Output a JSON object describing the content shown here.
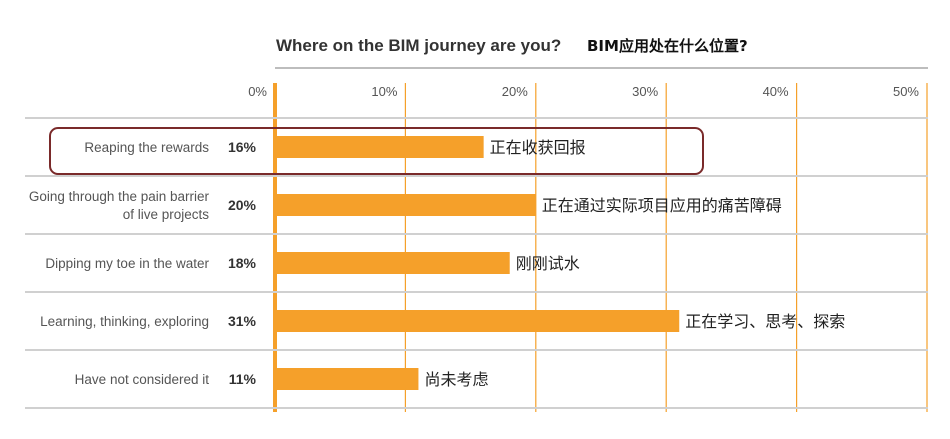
{
  "chart_data": {
    "type": "bar",
    "orientation": "horizontal",
    "title": "Where on the BIM journey are you?",
    "title_cn": "BIM应用处在什么位置?",
    "categories": [
      "Reaping the rewards",
      "Going through the pain barrier of live projects",
      "Dipping my toe in the water",
      "Learning, thinking, exploring",
      "Have not considered it"
    ],
    "category_lines": [
      [
        "Reaping the rewards"
      ],
      [
        "Going through the pain barrier",
        "of live projects"
      ],
      [
        "Dipping my toe in the water"
      ],
      [
        "Learning, thinking, exploring"
      ],
      [
        "Have not considered it"
      ]
    ],
    "values": [
      16,
      20,
      18,
      31,
      11
    ],
    "value_labels": [
      "16%",
      "20%",
      "18%",
      "31%",
      "11%"
    ],
    "annotations_cn": [
      "正在收获回报",
      "正在通过实际项目应用的痛苦障碍",
      "刚刚试水",
      "正在学习、思考、探索",
      "尚未考虑"
    ],
    "xlim": [
      0,
      50
    ],
    "x_ticks": [
      "0%",
      "10%",
      "20%",
      "30%",
      "40%",
      "50%"
    ],
    "grid": true,
    "highlighted_category": "Reaping the rewards",
    "colors": {
      "bar": "#F5A02A",
      "grid": "#F5A02A",
      "highlight": "#7A2A2A",
      "row_divider": "#D0D0D0"
    }
  }
}
